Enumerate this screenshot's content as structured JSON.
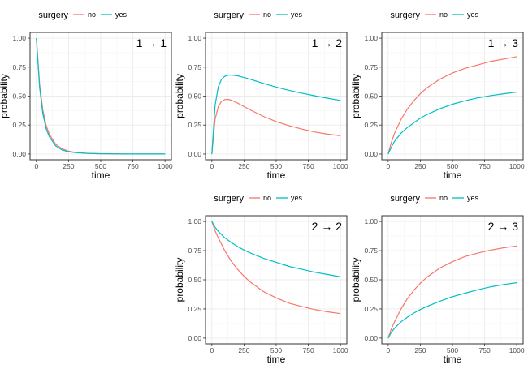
{
  "chart_data": [
    {
      "id": "p11",
      "type": "line",
      "label": "1 → 1",
      "xlabel": "time",
      "ylabel": "probability",
      "xlim": [
        0,
        1000
      ],
      "ylim": [
        0,
        1
      ],
      "xticks": [
        "0",
        "250",
        "500",
        "750",
        "1000"
      ],
      "yticks": [
        "0.00",
        "0.25",
        "0.50",
        "0.75",
        "1.00"
      ],
      "legend": {
        "title": "surgery",
        "entries": [
          "no",
          "yes"
        ]
      },
      "x": [
        0,
        25,
        50,
        75,
        100,
        150,
        200,
        250,
        300,
        400,
        500,
        600,
        700,
        800,
        900,
        1000
      ],
      "series": [
        {
          "name": "no",
          "values": [
            1.0,
            0.6,
            0.38,
            0.25,
            0.17,
            0.085,
            0.045,
            0.025,
            0.015,
            0.006,
            0.003,
            0.002,
            0.001,
            0.0,
            0.0,
            0.0
          ]
        },
        {
          "name": "yes",
          "values": [
            1.0,
            0.57,
            0.35,
            0.22,
            0.15,
            0.07,
            0.035,
            0.02,
            0.012,
            0.005,
            0.002,
            0.001,
            0.0,
            0.0,
            0.0,
            0.0
          ]
        }
      ]
    },
    {
      "id": "p12",
      "type": "line",
      "label": "1 → 2",
      "xlabel": "time",
      "ylabel": "probability",
      "xlim": [
        0,
        1000
      ],
      "ylim": [
        0,
        1
      ],
      "xticks": [
        "0",
        "250",
        "500",
        "750",
        "1000"
      ],
      "yticks": [
        "0.00",
        "0.25",
        "0.50",
        "0.75",
        "1.00"
      ],
      "legend": {
        "title": "surgery",
        "entries": [
          "no",
          "yes"
        ]
      },
      "x": [
        0,
        25,
        50,
        75,
        100,
        125,
        150,
        200,
        250,
        300,
        400,
        500,
        600,
        700,
        800,
        900,
        1000
      ],
      "series": [
        {
          "name": "no",
          "values": [
            0.0,
            0.3,
            0.41,
            0.455,
            0.47,
            0.472,
            0.465,
            0.44,
            0.41,
            0.38,
            0.325,
            0.28,
            0.245,
            0.215,
            0.19,
            0.172,
            0.158
          ]
        },
        {
          "name": "yes",
          "values": [
            0.0,
            0.42,
            0.58,
            0.645,
            0.67,
            0.68,
            0.682,
            0.675,
            0.66,
            0.645,
            0.61,
            0.578,
            0.55,
            0.525,
            0.503,
            0.482,
            0.463
          ]
        }
      ]
    },
    {
      "id": "p13",
      "type": "line",
      "label": "1 → 3",
      "xlabel": "time",
      "ylabel": "probability",
      "xlim": [
        0,
        1000
      ],
      "ylim": [
        0,
        1
      ],
      "xticks": [
        "0",
        "250",
        "500",
        "750",
        "1000"
      ],
      "yticks": [
        "0.00",
        "0.25",
        "0.50",
        "0.75",
        "1.00"
      ],
      "legend": {
        "title": "surgery",
        "entries": [
          "no",
          "yes"
        ]
      },
      "x": [
        0,
        25,
        50,
        100,
        150,
        200,
        250,
        300,
        400,
        500,
        600,
        700,
        800,
        900,
        1000
      ],
      "series": [
        {
          "name": "no",
          "values": [
            0.0,
            0.1,
            0.18,
            0.3,
            0.39,
            0.46,
            0.52,
            0.57,
            0.645,
            0.7,
            0.74,
            0.77,
            0.8,
            0.82,
            0.84
          ]
        },
        {
          "name": "yes",
          "values": [
            0.0,
            0.06,
            0.11,
            0.18,
            0.23,
            0.27,
            0.31,
            0.34,
            0.39,
            0.43,
            0.46,
            0.485,
            0.505,
            0.52,
            0.535
          ]
        }
      ]
    },
    {
      "id": "p22",
      "type": "line",
      "label": "2 → 2",
      "xlabel": "time",
      "ylabel": "probability",
      "xlim": [
        0,
        1000
      ],
      "ylim": [
        0,
        1
      ],
      "xticks": [
        "0",
        "250",
        "500",
        "750",
        "1000"
      ],
      "yticks": [
        "0.00",
        "0.25",
        "0.50",
        "0.75",
        "1.00"
      ],
      "legend": {
        "title": "surgery",
        "entries": [
          "no",
          "yes"
        ]
      },
      "x": [
        0,
        25,
        50,
        100,
        150,
        200,
        250,
        300,
        400,
        500,
        600,
        700,
        800,
        900,
        1000
      ],
      "series": [
        {
          "name": "no",
          "values": [
            1.0,
            0.92,
            0.86,
            0.75,
            0.66,
            0.59,
            0.53,
            0.48,
            0.4,
            0.345,
            0.3,
            0.27,
            0.245,
            0.225,
            0.21
          ]
        },
        {
          "name": "yes",
          "values": [
            1.0,
            0.95,
            0.915,
            0.86,
            0.82,
            0.785,
            0.755,
            0.73,
            0.685,
            0.65,
            0.615,
            0.59,
            0.565,
            0.545,
            0.525
          ]
        }
      ]
    },
    {
      "id": "p23",
      "type": "line",
      "label": "2 → 3",
      "xlabel": "time",
      "ylabel": "probability",
      "xlim": [
        0,
        1000
      ],
      "ylim": [
        0,
        1
      ],
      "xticks": [
        "0",
        "250",
        "500",
        "750",
        "1000"
      ],
      "yticks": [
        "0.00",
        "0.25",
        "0.50",
        "0.75",
        "1.00"
      ],
      "legend": {
        "title": "surgery",
        "entries": [
          "no",
          "yes"
        ]
      },
      "x": [
        0,
        25,
        50,
        100,
        150,
        200,
        250,
        300,
        400,
        500,
        600,
        700,
        800,
        900,
        1000
      ],
      "series": [
        {
          "name": "no",
          "values": [
            0.0,
            0.08,
            0.14,
            0.25,
            0.34,
            0.41,
            0.47,
            0.52,
            0.6,
            0.655,
            0.7,
            0.73,
            0.755,
            0.775,
            0.79
          ]
        },
        {
          "name": "yes",
          "values": [
            0.0,
            0.05,
            0.085,
            0.14,
            0.18,
            0.215,
            0.245,
            0.27,
            0.315,
            0.355,
            0.385,
            0.415,
            0.44,
            0.46,
            0.475
          ]
        }
      ]
    }
  ],
  "colors": {
    "no": "#f8766d",
    "yes": "#00bfc4"
  }
}
